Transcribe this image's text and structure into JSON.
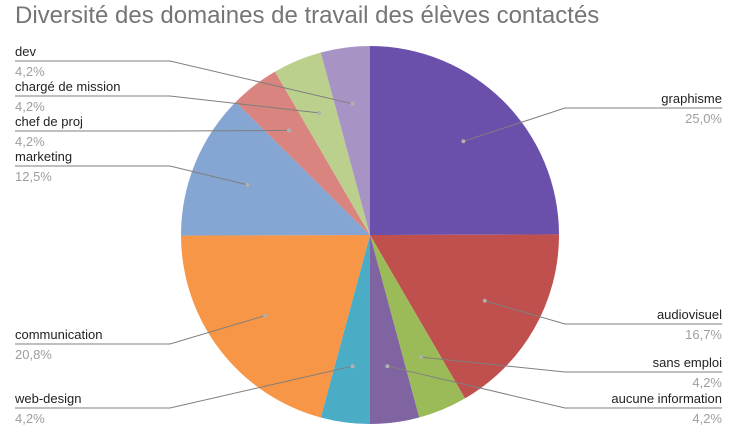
{
  "chart_data": {
    "type": "pie",
    "title": "Diversité des domaines de travail des élèves contactés",
    "legend": "none",
    "slices": [
      {
        "name": "graphisme",
        "value": 25.0,
        "label": "25,0%",
        "color": "#6a4fab"
      },
      {
        "name": "audiovisuel",
        "value": 16.7,
        "label": "16,7%",
        "color": "#c0504d"
      },
      {
        "name": "sans emploi",
        "value": 4.2,
        "label": "4,2%",
        "color": "#9bbb59"
      },
      {
        "name": "aucune information",
        "value": 4.2,
        "label": "4,2%",
        "color": "#8064a2"
      },
      {
        "name": "web-design",
        "value": 4.2,
        "label": "4,2%",
        "color": "#4bacc6"
      },
      {
        "name": "communication",
        "value": 20.8,
        "label": "20,8%",
        "color": "#f79646"
      },
      {
        "name": "marketing",
        "value": 12.5,
        "label": "12,5%",
        "color": "#85a5d2"
      },
      {
        "name": "chef de proj",
        "value": 4.2,
        "label": "4,2%",
        "color": "#d9847e"
      },
      {
        "name": "chargé de mission",
        "value": 4.2,
        "label": "4,2%",
        "color": "#bcd08e"
      },
      {
        "name": "dev",
        "value": 4.2,
        "label": "4,2%",
        "color": "#a794c4"
      }
    ]
  }
}
